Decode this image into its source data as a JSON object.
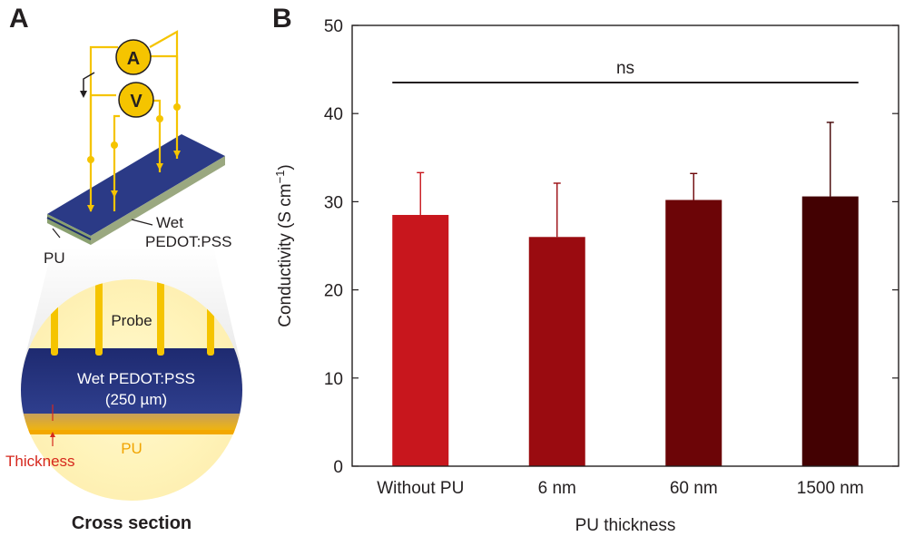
{
  "panel_a": {
    "label": "A",
    "ammeter": "A",
    "voltmeter": "V",
    "wet_label_line1": "Wet",
    "wet_label_line2": "PEDOT:PSS",
    "pu_label": "PU",
    "probe_label": "Probe",
    "wet_cs_line1": "Wet PEDOT:PSS",
    "wet_cs_line2": "(250 µm)",
    "pu_cs_label": "PU",
    "thickness_label": "Thickness",
    "caption": "Cross section",
    "colors": {
      "probe": "#f5c400",
      "film": "#26357a",
      "thickness": "#d6281e",
      "pu": "#f1a400"
    }
  },
  "panel_b": {
    "label": "B"
  },
  "chart_data": {
    "type": "bar",
    "categories": [
      "Without PU",
      "6 nm",
      "60 nm",
      "1500 nm"
    ],
    "values": [
      28.5,
      26.0,
      30.2,
      30.6
    ],
    "errors": [
      4.8,
      6.1,
      3.0,
      8.4
    ],
    "colors": [
      "#c8161d",
      "#9a0b10",
      "#6c0507",
      "#430102"
    ],
    "xlabel": "PU thickness",
    "ylabel": "Conductivity (S cm",
    "ylabel_sup": "−1",
    "ylabel_end": ")",
    "ylim": [
      0,
      50
    ],
    "yticks": [
      0,
      10,
      20,
      30,
      40,
      50
    ],
    "significance": {
      "label": "ns",
      "from": "Without PU",
      "to": "1500 nm"
    },
    "grid": false
  }
}
